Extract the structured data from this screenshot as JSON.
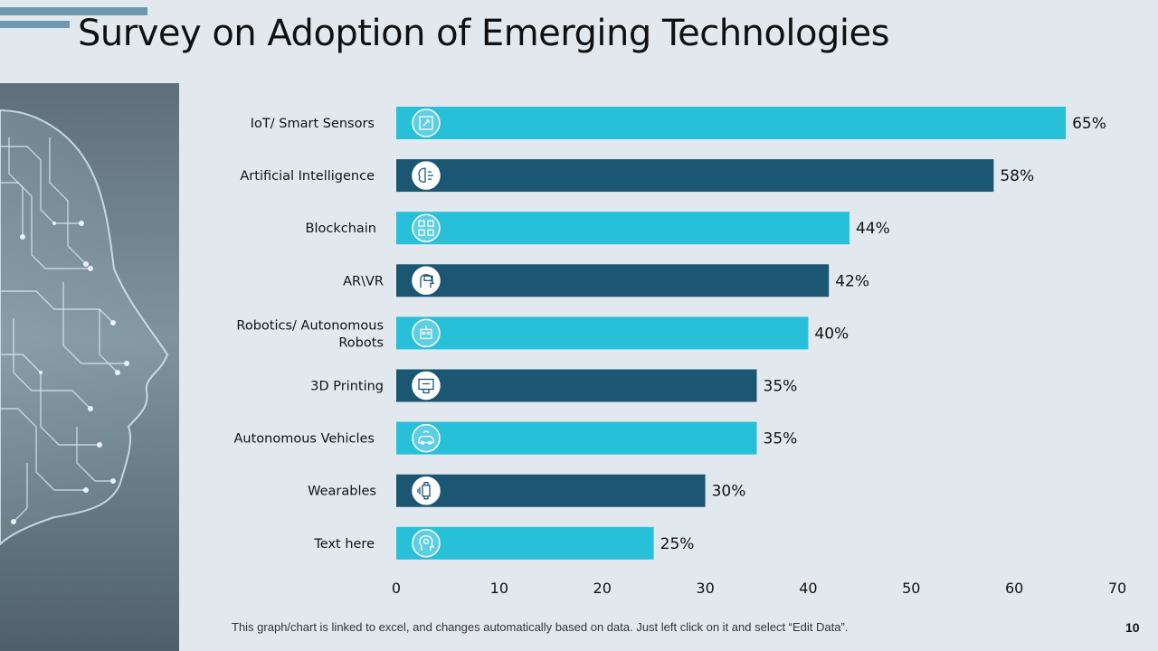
{
  "slide": {
    "title": "Survey on Adoption of Emerging Technologies",
    "footer_note": "This graph/chart is linked to excel, and changes automatically based on data. Just left click on it and select “Edit Data”.",
    "page_number": "10"
  },
  "colors": {
    "background": "#e1e9ef",
    "accent": "#6e98b1",
    "bar_light": "#28bfd8",
    "bar_dark": "#1b5673",
    "text": "#111111"
  },
  "chart_data": {
    "type": "bar",
    "orientation": "horizontal",
    "title": "",
    "xlabel": "",
    "ylabel": "",
    "xlim": [
      0,
      70
    ],
    "x_ticks": [
      0,
      10,
      20,
      30,
      40,
      50,
      60,
      70
    ],
    "grid": false,
    "categories": [
      [
        "IoT/ Smart Sensors"
      ],
      [
        "Artificial Intelligence"
      ],
      [
        "Blockchain"
      ],
      [
        "AR\\VR"
      ],
      [
        "Robotics/ Autonomous",
        "Robots"
      ],
      [
        "3D Printing"
      ],
      [
        "Autonomous Vehicles"
      ],
      [
        "Wearables"
      ],
      [
        "Text here"
      ]
    ],
    "values": [
      65,
      58,
      44,
      42,
      40,
      35,
      35,
      30,
      25
    ],
    "value_labels": [
      "65%",
      "58%",
      "44%",
      "42%",
      "40%",
      "35%",
      "35%",
      "30%",
      "25%"
    ],
    "bar_colors": [
      "light",
      "dark",
      "light",
      "dark",
      "light",
      "dark",
      "light",
      "dark",
      "light"
    ],
    "icons": [
      "sensor-icon",
      "brain-icon",
      "blockchain-icon",
      "vr-headset-icon",
      "robot-icon",
      "printer-3d-icon",
      "car-wifi-icon",
      "smartwatch-icon",
      "head-gears-icon"
    ]
  }
}
